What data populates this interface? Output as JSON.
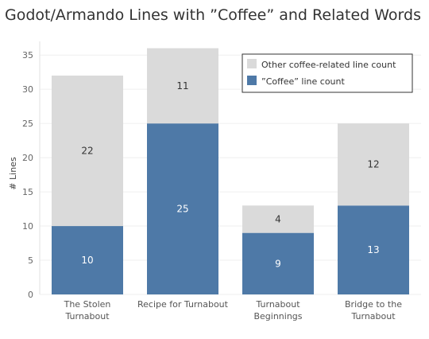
{
  "chart_data": {
    "type": "bar",
    "stacked": true,
    "title": "Godot/Armando Lines with ”Coffee” and Related Words",
    "ylabel": "# Lines",
    "xlabel": "",
    "ylim": [
      0,
      37
    ],
    "yticks": [
      0,
      5,
      10,
      15,
      20,
      25,
      30,
      35
    ],
    "categories": [
      [
        "The Stolen",
        "Turnabout"
      ],
      [
        "Recipe for Turnabout"
      ],
      [
        "Turnabout",
        "Beginnings"
      ],
      [
        "Bridge to the",
        "Turnabout"
      ]
    ],
    "series": [
      {
        "name": "”Coffee” line count",
        "color": "#4e79a7",
        "label_color": "#ffffff",
        "values": [
          10,
          25,
          9,
          13
        ]
      },
      {
        "name": "Other coffee-related line count",
        "color": "#dadada",
        "label_color": "#333333",
        "values": [
          22,
          11,
          4,
          12
        ]
      }
    ],
    "legend": {
      "position": "top-right",
      "order": [
        1,
        0
      ]
    },
    "grid": true
  }
}
